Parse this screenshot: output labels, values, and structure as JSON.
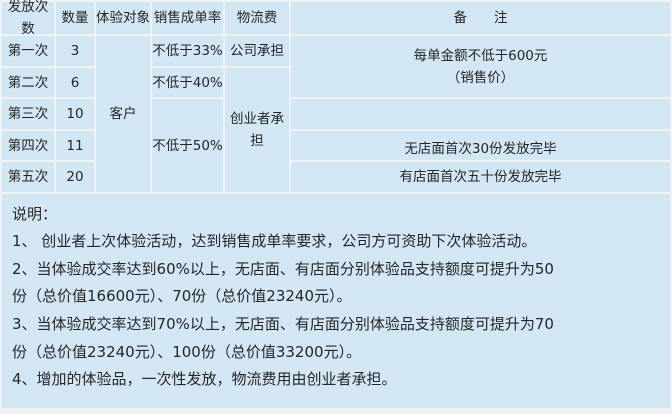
{
  "table": {
    "headers": [
      "发放次数",
      "数量",
      "体验对象",
      "销售成单率",
      "物流费",
      "备　　注"
    ],
    "rows": [
      {
        "round": "第一次",
        "qty": "3"
      },
      {
        "round": "第二次",
        "qty": "6"
      },
      {
        "round": "第三次",
        "qty": "10"
      },
      {
        "round": "第四次",
        "qty": "11"
      },
      {
        "round": "第五次",
        "qty": "20"
      }
    ],
    "target": "客户",
    "rates": [
      "不低于33%",
      "不低于40%",
      "不低于50%"
    ],
    "logistics": [
      "公司承担",
      "创业者承担"
    ],
    "remarks": {
      "r1_line1": "每单金额不低于600元",
      "r1_line2": "（销售价）",
      "r4": "无店面首次30份发放完毕",
      "r5": "有店面首次五十份发放完毕"
    }
  },
  "notes": {
    "title": "说明：",
    "lines": [
      "1、 创业者上次体验活动，达到销售成单率要求，公司方可资助下次体验活动。",
      "2、当体验成交率达到60%以上，无店面、有店面分别体验品支持额度可提升为50",
      "份（总价值16600元）、70份（总价值23240元）。",
      "3、当体验成交率达到70%以上，无店面、有店面分别体验品支持额度可提升为70",
      "份（总价值23240元）、100份（总价值33200元）。",
      "4、增加的体验品，一次性发放，物流费用由创业者承担。"
    ]
  }
}
